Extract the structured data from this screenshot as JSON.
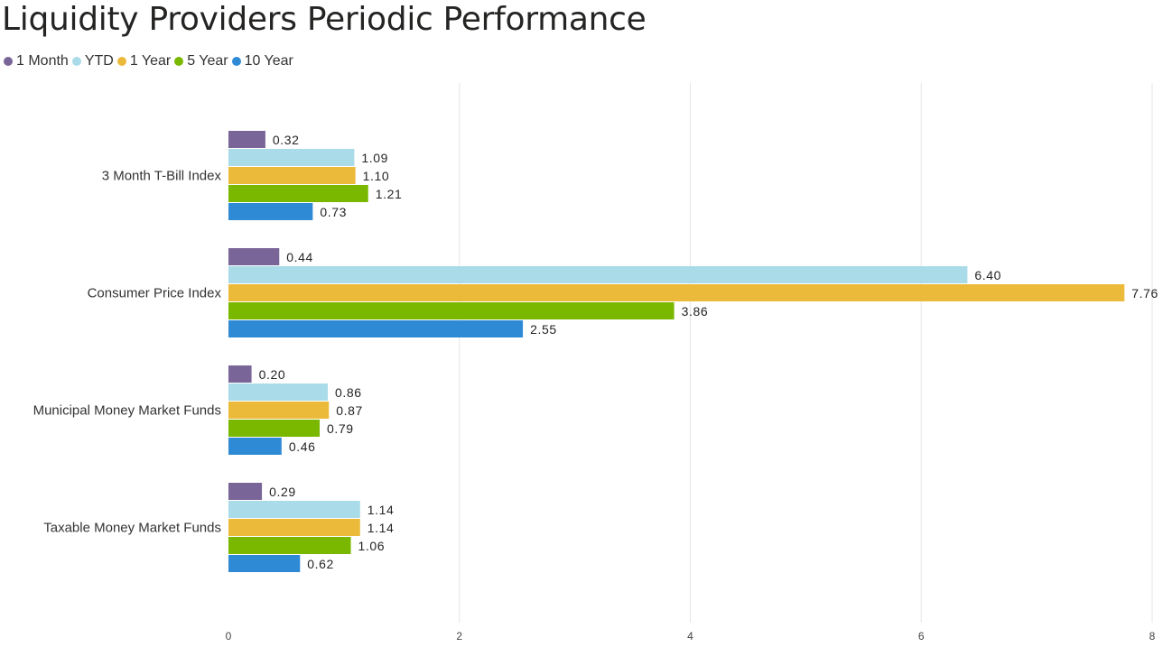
{
  "title": "Liquidity Providers Periodic Performance",
  "colors": {
    "1 Month": "#7a6598",
    "YTD": "#a9dce8",
    "1 Year": "#ecba3a",
    "5 Year": "#7ab800",
    "10 Year": "#2f8ad6",
    "grid": "#e6e6e6",
    "label_text": "#252423",
    "axis_text": "#444444"
  },
  "chart_data": {
    "type": "bar",
    "orientation": "horizontal",
    "title": "Liquidity Providers Periodic Performance",
    "categories": [
      "3 Month T-Bill Index",
      "Consumer Price Index",
      "Municipal Money Market Funds",
      "Taxable Money Market Funds"
    ],
    "series": [
      {
        "name": "1 Month",
        "values": [
          0.32,
          0.44,
          0.2,
          0.29
        ],
        "labels": [
          "0.32",
          "0.44",
          "0.20",
          "0.29"
        ]
      },
      {
        "name": "YTD",
        "values": [
          1.09,
          6.4,
          0.86,
          1.14
        ],
        "labels": [
          "1.09",
          "6.40",
          "0.86",
          "1.14"
        ]
      },
      {
        "name": "1 Year",
        "values": [
          1.1,
          7.76,
          0.87,
          1.14
        ],
        "labels": [
          "1.10",
          "7.76",
          "0.87",
          "1.14"
        ]
      },
      {
        "name": "5 Year",
        "values": [
          1.21,
          3.86,
          0.79,
          1.06
        ],
        "labels": [
          "1.21",
          "3.86",
          "0.79",
          "1.06"
        ]
      },
      {
        "name": "10 Year",
        "values": [
          0.73,
          2.55,
          0.46,
          0.62
        ],
        "labels": [
          "0.73",
          "2.55",
          "0.46",
          "0.62"
        ]
      }
    ],
    "xlim": [
      0,
      8
    ],
    "xticks": [
      "0",
      "2",
      "4",
      "6",
      "8"
    ],
    "grid": true,
    "legend_position": "top-left",
    "xlabel": "",
    "ylabel": ""
  }
}
